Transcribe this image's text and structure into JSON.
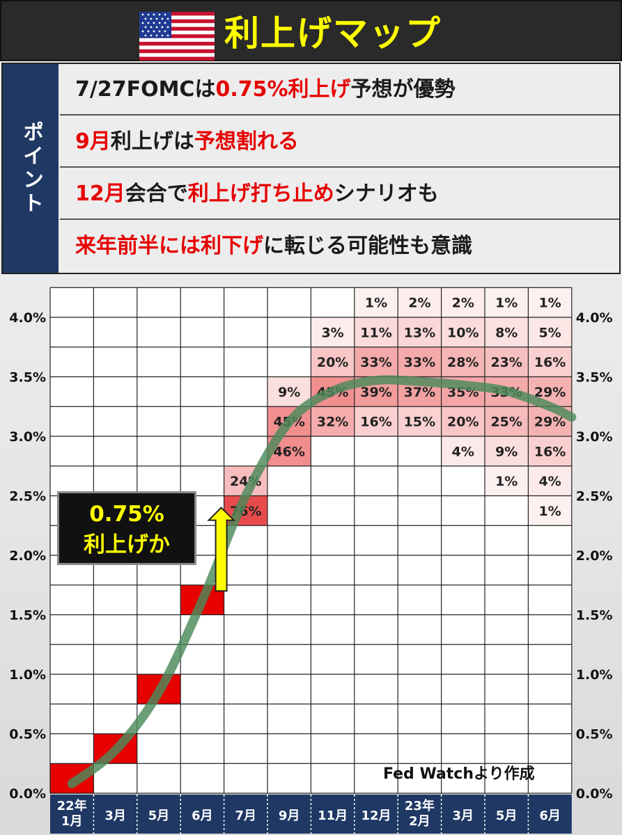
{
  "header": {
    "title": "利上げマップ",
    "flag_icon": "us-flag-icon"
  },
  "points": {
    "label": "ポイント",
    "rows": [
      [
        {
          "t": "7/27FOMCは",
          "red": false
        },
        {
          "t": "0.75%利上げ",
          "red": true
        },
        {
          "t": "予想が優勢",
          "red": false
        }
      ],
      [
        {
          "t": "9月",
          "red": true
        },
        {
          "t": "利上げは",
          "red": false
        },
        {
          "t": "予想割れる",
          "red": true
        }
      ],
      [
        {
          "t": "12月",
          "red": true
        },
        {
          "t": "会合で",
          "red": false
        },
        {
          "t": "利上げ打ち止め",
          "red": true
        },
        {
          "t": "シナリオも",
          "red": false
        }
      ],
      [
        {
          "t": "来年前半には利下げ",
          "red": true
        },
        {
          "t": "に転じる可能性も意識",
          "red": false
        }
      ]
    ]
  },
  "annotation": {
    "line1": "0.75%",
    "line2": "利上げか"
  },
  "source": "Fed Watchより作成",
  "colors": {
    "header_bg": "#2a2a2a",
    "title": "#ffff00",
    "points_label_bg": "#1f3864",
    "emphasis_red": "#e60000",
    "axis_bar": "#1f3864",
    "solid_cell": "#e60000",
    "trend_line": "#4a8a5a",
    "arrow": "#ffff00"
  },
  "chart_data": {
    "type": "heatmap",
    "categories": [
      [
        "22年",
        "1月"
      ],
      [
        "3月"
      ],
      [
        "5月"
      ],
      [
        "6月"
      ],
      [
        "7月"
      ],
      [
        "9月"
      ],
      [
        "11月"
      ],
      [
        "12月"
      ],
      [
        "23年",
        "2月"
      ],
      [
        "3月"
      ],
      [
        "5月"
      ],
      [
        "6月"
      ]
    ],
    "y_tick_labels": [
      "0.0%",
      "0.5%",
      "1.0%",
      "1.5%",
      "2.0%",
      "2.5%",
      "3.0%",
      "3.5%",
      "4.0%"
    ],
    "ylim": [
      0,
      4.25
    ],
    "level_step": 0.25,
    "solid_cells": [
      {
        "col": 0,
        "level": 0.125
      },
      {
        "col": 1,
        "level": 0.375
      },
      {
        "col": 2,
        "level": 0.875
      },
      {
        "col": 3,
        "level": 1.625
      }
    ],
    "cells": [
      {
        "col": 4,
        "level": 2.375,
        "value": 76
      },
      {
        "col": 4,
        "level": 2.625,
        "value": 24
      },
      {
        "col": 5,
        "level": 2.875,
        "value": 46
      },
      {
        "col": 5,
        "level": 3.125,
        "value": 45
      },
      {
        "col": 5,
        "level": 3.375,
        "value": 9
      },
      {
        "col": 6,
        "level": 3.125,
        "value": 32
      },
      {
        "col": 6,
        "level": 3.375,
        "value": 45
      },
      {
        "col": 6,
        "level": 3.625,
        "value": 20
      },
      {
        "col": 6,
        "level": 3.875,
        "value": 3
      },
      {
        "col": 7,
        "level": 3.125,
        "value": 16
      },
      {
        "col": 7,
        "level": 3.375,
        "value": 39
      },
      {
        "col": 7,
        "level": 3.625,
        "value": 33
      },
      {
        "col": 7,
        "level": 3.875,
        "value": 11
      },
      {
        "col": 7,
        "level": 4.125,
        "value": 1
      },
      {
        "col": 8,
        "level": 3.125,
        "value": 15
      },
      {
        "col": 8,
        "level": 3.375,
        "value": 37
      },
      {
        "col": 8,
        "level": 3.625,
        "value": 33
      },
      {
        "col": 8,
        "level": 3.875,
        "value": 13
      },
      {
        "col": 8,
        "level": 4.125,
        "value": 2
      },
      {
        "col": 9,
        "level": 2.875,
        "value": 4
      },
      {
        "col": 9,
        "level": 3.125,
        "value": 20
      },
      {
        "col": 9,
        "level": 3.375,
        "value": 35
      },
      {
        "col": 9,
        "level": 3.625,
        "value": 28
      },
      {
        "col": 9,
        "level": 3.875,
        "value": 10
      },
      {
        "col": 9,
        "level": 4.125,
        "value": 2
      },
      {
        "col": 10,
        "level": 2.625,
        "value": 1
      },
      {
        "col": 10,
        "level": 2.875,
        "value": 9
      },
      {
        "col": 10,
        "level": 3.125,
        "value": 25
      },
      {
        "col": 10,
        "level": 3.375,
        "value": 33
      },
      {
        "col": 10,
        "level": 3.625,
        "value": 23
      },
      {
        "col": 10,
        "level": 3.875,
        "value": 8
      },
      {
        "col": 10,
        "level": 4.125,
        "value": 1
      },
      {
        "col": 11,
        "level": 2.375,
        "value": 1
      },
      {
        "col": 11,
        "level": 2.625,
        "value": 4
      },
      {
        "col": 11,
        "level": 2.875,
        "value": 16
      },
      {
        "col": 11,
        "level": 3.125,
        "value": 29
      },
      {
        "col": 11,
        "level": 3.375,
        "value": 29
      },
      {
        "col": 11,
        "level": 3.625,
        "value": 16
      },
      {
        "col": 11,
        "level": 3.875,
        "value": 5
      },
      {
        "col": 11,
        "level": 4.125,
        "value": 1
      }
    ],
    "value_suffix": "%",
    "trend_line": [
      {
        "col": 0,
        "y": 0.08
      },
      {
        "col": 1,
        "y": 0.36
      },
      {
        "col": 2,
        "y": 0.85
      },
      {
        "col": 3,
        "y": 1.62
      },
      {
        "col": 4,
        "y": 2.5
      },
      {
        "col": 5,
        "y": 3.12
      },
      {
        "col": 6,
        "y": 3.38
      },
      {
        "col": 7,
        "y": 3.47
      },
      {
        "col": 8,
        "y": 3.46
      },
      {
        "col": 9,
        "y": 3.43
      },
      {
        "col": 10,
        "y": 3.38
      },
      {
        "col": 11,
        "y": 3.25
      },
      {
        "col": 11.5,
        "y": 3.16
      }
    ],
    "arrow": {
      "col": 4,
      "from": 1.7,
      "to": 2.4
    }
  }
}
